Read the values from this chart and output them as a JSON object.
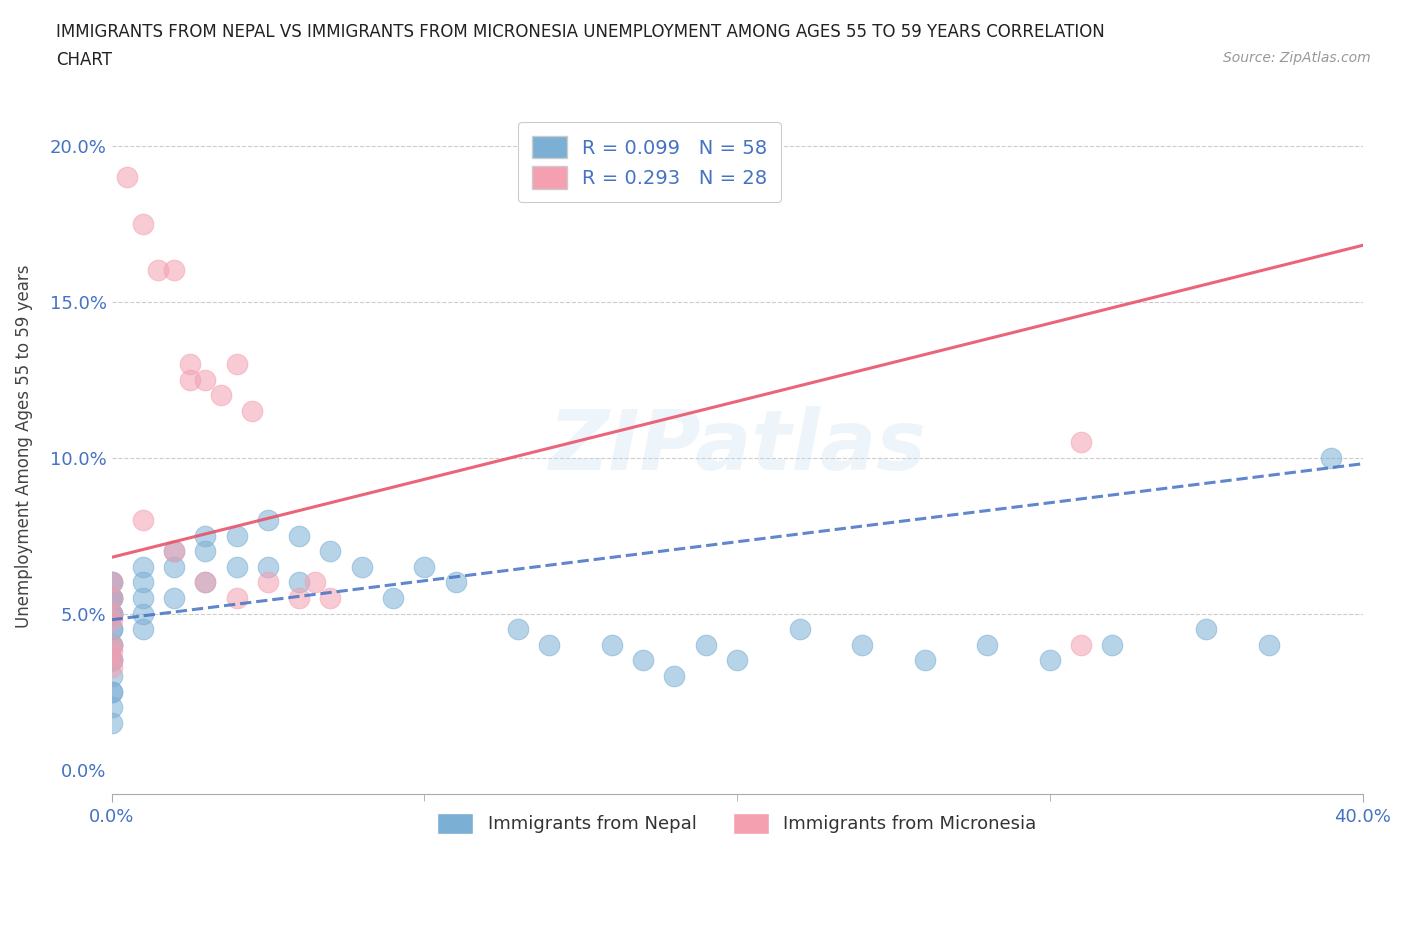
{
  "title_line1": "IMMIGRANTS FROM NEPAL VS IMMIGRANTS FROM MICRONESIA UNEMPLOYMENT AMONG AGES 55 TO 59 YEARS CORRELATION",
  "title_line2": "CHART",
  "source": "Source: ZipAtlas.com",
  "ylabel": "Unemployment Among Ages 55 to 59 years",
  "xlim": [
    0,
    0.4
  ],
  "ylim": [
    -0.008,
    0.215
  ],
  "yticks": [
    0.0,
    0.05,
    0.1,
    0.15,
    0.2
  ],
  "ytick_labels": [
    "0.0%",
    "5.0%",
    "10.0%",
    "15.0%",
    "20.0%"
  ],
  "xtick_labels": [
    "0.0%",
    "40.0%"
  ],
  "nepal_color": "#7BAFD4",
  "micronesia_color": "#F4A0B0",
  "nepal_line_color": "#4472C4",
  "micronesia_line_color": "#E8546A",
  "nepal_R": 0.099,
  "nepal_N": 58,
  "micronesia_R": 0.293,
  "micronesia_N": 28,
  "nepal_scatter_x": [
    0.0,
    0.0,
    0.0,
    0.0,
    0.0,
    0.0,
    0.0,
    0.0,
    0.0,
    0.0,
    0.0,
    0.0,
    0.0,
    0.0,
    0.0,
    0.0,
    0.0,
    0.0,
    0.0,
    0.0,
    0.01,
    0.01,
    0.01,
    0.01,
    0.01,
    0.02,
    0.02,
    0.02,
    0.03,
    0.03,
    0.03,
    0.04,
    0.04,
    0.05,
    0.05,
    0.06,
    0.06,
    0.07,
    0.08,
    0.09,
    0.1,
    0.11,
    0.13,
    0.14,
    0.16,
    0.17,
    0.18,
    0.19,
    0.2,
    0.22,
    0.24,
    0.26,
    0.28,
    0.3,
    0.32,
    0.35,
    0.37,
    0.39
  ],
  "nepal_scatter_y": [
    0.06,
    0.06,
    0.055,
    0.055,
    0.055,
    0.05,
    0.05,
    0.05,
    0.05,
    0.045,
    0.045,
    0.04,
    0.04,
    0.035,
    0.035,
    0.03,
    0.025,
    0.025,
    0.02,
    0.015,
    0.065,
    0.06,
    0.055,
    0.05,
    0.045,
    0.07,
    0.065,
    0.055,
    0.075,
    0.07,
    0.06,
    0.075,
    0.065,
    0.08,
    0.065,
    0.075,
    0.06,
    0.07,
    0.065,
    0.055,
    0.065,
    0.06,
    0.045,
    0.04,
    0.04,
    0.035,
    0.03,
    0.04,
    0.035,
    0.045,
    0.04,
    0.035,
    0.04,
    0.035,
    0.04,
    0.045,
    0.04,
    0.1
  ],
  "micronesia_scatter_x": [
    0.005,
    0.01,
    0.015,
    0.02,
    0.025,
    0.025,
    0.03,
    0.035,
    0.04,
    0.045,
    0.05,
    0.06,
    0.065,
    0.07,
    0.01,
    0.02,
    0.03,
    0.04,
    0.0,
    0.0,
    0.0,
    0.0,
    0.0,
    0.0,
    0.0,
    0.0,
    0.31,
    0.31
  ],
  "micronesia_scatter_y": [
    0.19,
    0.175,
    0.16,
    0.16,
    0.13,
    0.125,
    0.125,
    0.12,
    0.13,
    0.115,
    0.06,
    0.055,
    0.06,
    0.055,
    0.08,
    0.07,
    0.06,
    0.055,
    0.06,
    0.055,
    0.05,
    0.048,
    0.04,
    0.038,
    0.035,
    0.033,
    0.105,
    0.04
  ],
  "nepal_trend_x": [
    0.0,
    0.4
  ],
  "nepal_trend_y": [
    0.048,
    0.098
  ],
  "micro_trend_x": [
    0.0,
    0.4
  ],
  "micro_trend_y": [
    0.068,
    0.168
  ]
}
